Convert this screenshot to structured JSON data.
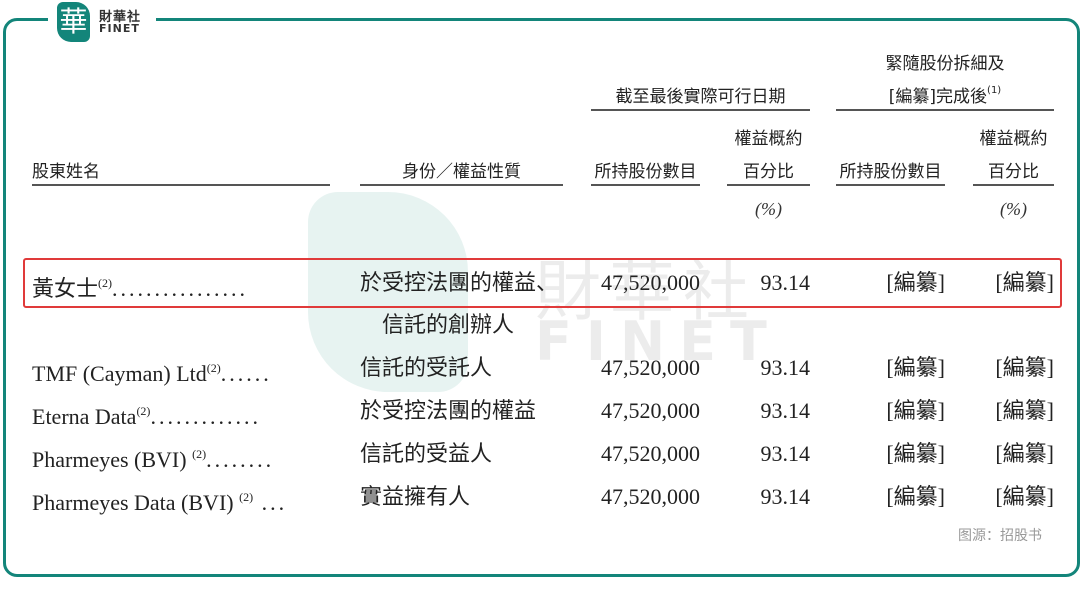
{
  "logo": {
    "cn": "財華社",
    "en": "FINET",
    "mark": "華"
  },
  "watermark": {
    "cn": "財華社",
    "en": "FINET"
  },
  "header": {
    "group1": "截至最後實際可行日期",
    "group2_line1": "緊隨股份拆細及",
    "group2_line2": "[編纂]完成後",
    "group2_note": "(1)",
    "name": "股東姓名",
    "capacity": "身份／權益性質",
    "shares": "所持股份數目",
    "pct_line1": "權益概約",
    "pct_line2": "百分比",
    "pct_unit": "(%)"
  },
  "rows": [
    {
      "name": "黃女士",
      "note": "(2)",
      "dots": "................",
      "capacity": "於受控法團的權益、",
      "capacity2": "信託的創辦人",
      "shares": "47,520,000",
      "pct": "93.14",
      "post_shares": "[編纂]",
      "post_pct": "[編纂]"
    },
    {
      "name": "TMF (Cayman) Ltd",
      "note": "(2)",
      "dots": "......",
      "capacity": "信託的受託人",
      "shares": "47,520,000",
      "pct": "93.14",
      "post_shares": "[編纂]",
      "post_pct": "[編纂]"
    },
    {
      "name": "Eterna Data",
      "note": "(2)",
      "dots": ".............",
      "capacity": "於受控法團的權益",
      "shares": "47,520,000",
      "pct": "93.14",
      "post_shares": "[編纂]",
      "post_pct": "[編纂]"
    },
    {
      "name": "Pharmeyes (BVI) ",
      "note": "(2)",
      "dots": "........",
      "capacity": "信託的受益人",
      "shares": "47,520,000",
      "pct": "93.14",
      "post_shares": "[編纂]",
      "post_pct": "[編纂]"
    },
    {
      "name": "Pharmeyes Data (BVI) ",
      "note": "(2)",
      "dots": " ...",
      "capacity": "實益擁有人",
      "shares": "47,520,000",
      "pct": "93.14",
      "post_shares": "[編纂]",
      "post_pct": "[編纂]"
    }
  ],
  "source": "图源：招股书",
  "colors": {
    "frame": "#13857a",
    "highlight": "#e03a3a"
  }
}
